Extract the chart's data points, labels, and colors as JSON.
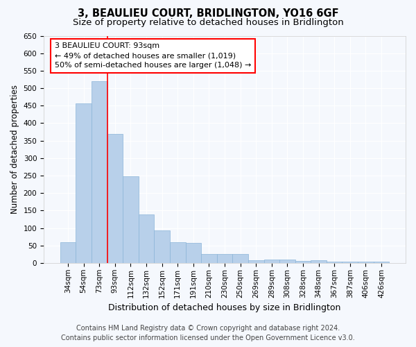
{
  "title": "3, BEAULIEU COURT, BRIDLINGTON, YO16 6GF",
  "subtitle": "Size of property relative to detached houses in Bridlington",
  "xlabel": "Distribution of detached houses by size in Bridlington",
  "ylabel": "Number of detached properties",
  "categories": [
    "34sqm",
    "54sqm",
    "73sqm",
    "93sqm",
    "112sqm",
    "132sqm",
    "152sqm",
    "171sqm",
    "191sqm",
    "210sqm",
    "230sqm",
    "250sqm",
    "269sqm",
    "289sqm",
    "308sqm",
    "328sqm",
    "348sqm",
    "367sqm",
    "387sqm",
    "406sqm",
    "426sqm"
  ],
  "values": [
    60,
    457,
    519,
    370,
    248,
    138,
    93,
    60,
    57,
    25,
    25,
    25,
    8,
    10,
    10,
    5,
    8,
    3,
    4,
    3,
    3
  ],
  "bar_color": "#b8d0ea",
  "bar_edge_color": "#8ab4d8",
  "red_line_x": 3,
  "ylim": [
    0,
    650
  ],
  "yticks": [
    0,
    50,
    100,
    150,
    200,
    250,
    300,
    350,
    400,
    450,
    500,
    550,
    600,
    650
  ],
  "annotation_line1": "3 BEAULIEU COURT: 93sqm",
  "annotation_line2": "← 49% of detached houses are smaller (1,019)",
  "annotation_line3": "50% of semi-detached houses are larger (1,048) →",
  "footer_line1": "Contains HM Land Registry data © Crown copyright and database right 2024.",
  "footer_line2": "Contains public sector information licensed under the Open Government Licence v3.0.",
  "background_color": "#f5f8fd",
  "plot_bg_color": "#f5f8fd",
  "grid_color": "#ffffff",
  "title_fontsize": 10.5,
  "subtitle_fontsize": 9.5,
  "ylabel_fontsize": 8.5,
  "xlabel_fontsize": 9,
  "tick_fontsize": 7.5,
  "annotation_fontsize": 8,
  "footer_fontsize": 7
}
